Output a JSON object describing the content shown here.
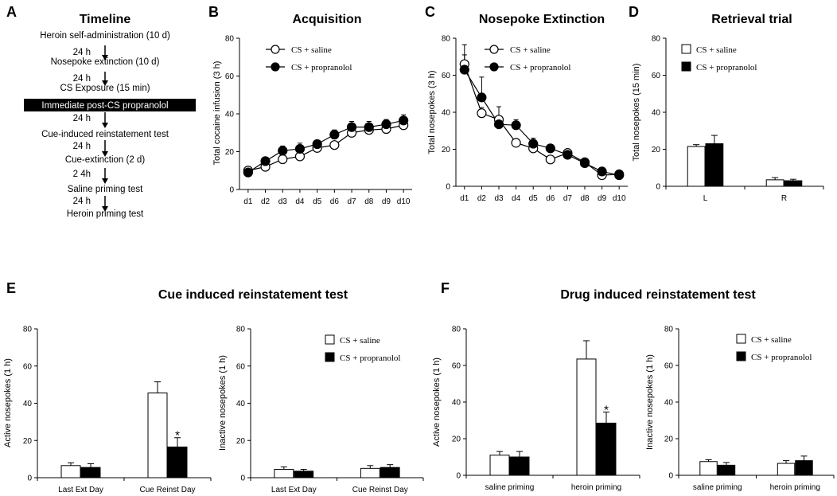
{
  "panel_letters": [
    "A",
    "B",
    "C",
    "D",
    "E",
    "F"
  ],
  "timeline": {
    "title": "Timeline",
    "steps": [
      "Heroin self-administration (10 d)",
      "Nosepoke extinction (10 d)",
      "CS Exposure (15 min)",
      "Immediate post-CS propranolol",
      "Cue-induced reinstatement test",
      "Cue-extinction (2 d)",
      "Saline priming test",
      "Heroin priming test"
    ],
    "intervals": [
      "24 h",
      "24 h",
      "24 h",
      "24 h",
      "2 4h",
      "24 h"
    ]
  },
  "legend": {
    "saline": "CS + saline",
    "propranolol": "CS + propranolol"
  },
  "group_titles": {
    "E": "Cue induced reinstatement test",
    "F": "Drug induced reinstatement test"
  },
  "colors": {
    "saline_fill": "#ffffff",
    "propranolol_fill": "#000000",
    "axis": "#000000",
    "timeline_bar": "#000000"
  },
  "chart_data": [
    {
      "id": "B",
      "type": "line",
      "title": "Acquisition",
      "xlabel": "",
      "ylabel": "Total cocaine infusion (3 h)",
      "categories": [
        "d1",
        "d2",
        "d3",
        "d4",
        "d5",
        "d6",
        "d7",
        "d8",
        "d9",
        "d10"
      ],
      "ylim": [
        0,
        80
      ],
      "yticks": [
        0,
        20,
        40,
        60,
        80
      ],
      "series": [
        {
          "name": "CS + saline",
          "values": [
            10,
            12,
            16,
            17.5,
            22,
            23.5,
            30,
            31.5,
            32,
            34
          ],
          "errors": [
            1,
            1,
            1.5,
            1.5,
            1.5,
            1.5,
            2,
            2,
            2,
            2
          ]
        },
        {
          "name": "CS + propranolol",
          "values": [
            9,
            15,
            20.5,
            21.5,
            24,
            29,
            33,
            33,
            34.5,
            36.5
          ],
          "errors": [
            1,
            1.5,
            2.5,
            3,
            2,
            2.5,
            3,
            3,
            2.5,
            3
          ]
        }
      ],
      "legend_position": "top-left"
    },
    {
      "id": "C",
      "type": "line",
      "title": "Nosepoke Extinction",
      "xlabel": "",
      "ylabel": "Total nosepokes (3 h)",
      "categories": [
        "d1",
        "d2",
        "d3",
        "d4",
        "d5",
        "d6",
        "d7",
        "d8",
        "d9",
        "d10"
      ],
      "ylim": [
        0,
        80
      ],
      "yticks": [
        0,
        20,
        40,
        60,
        80
      ],
      "series": [
        {
          "name": "CS + saline",
          "values": [
            66,
            39.5,
            36,
            23.5,
            20.5,
            14.5,
            18,
            13,
            6,
            6.5
          ],
          "errors": [
            5,
            3,
            7,
            2,
            2,
            2,
            2,
            2,
            1.5,
            1
          ]
        },
        {
          "name": "CS + propranolol",
          "values": [
            63,
            48,
            33.5,
            33,
            23,
            20.5,
            17,
            12.5,
            8,
            6
          ],
          "errors": [
            13.5,
            11,
            2,
            3,
            3,
            2,
            2,
            2,
            1.5,
            1
          ]
        }
      ],
      "legend_position": "top-right"
    },
    {
      "id": "D",
      "type": "bar",
      "title": "Retrieval trial",
      "xlabel": "",
      "ylabel": "Total nosepokes (15 min)",
      "categories": [
        "L",
        "R"
      ],
      "ylim": [
        0,
        80
      ],
      "yticks": [
        0,
        20,
        40,
        60,
        80
      ],
      "series": [
        {
          "name": "CS + saline",
          "values": [
            21.5,
            3.5
          ],
          "errors": [
            1,
            1.2
          ]
        },
        {
          "name": "CS + propranolol",
          "values": [
            23,
            3
          ],
          "errors": [
            4.5,
            0.8
          ]
        }
      ],
      "legend_position": "top-right"
    },
    {
      "id": "E-left",
      "type": "bar",
      "title": "",
      "xlabel": "",
      "ylabel": "Active nosepokes (1 h)",
      "categories": [
        "Last Ext Day",
        "Cue Reinst Day"
      ],
      "ylim": [
        0,
        80
      ],
      "yticks": [
        0,
        20,
        40,
        60,
        80
      ],
      "series": [
        {
          "name": "CS + saline",
          "values": [
            6.5,
            45.5
          ],
          "errors": [
            1.5,
            6
          ]
        },
        {
          "name": "CS + propranolol",
          "values": [
            5.5,
            16.5
          ],
          "errors": [
            2,
            5
          ]
        }
      ],
      "annotations": [
        {
          "text": "*",
          "category": "Cue Reinst Day",
          "series": "CS + propranolol"
        }
      ]
    },
    {
      "id": "E-right",
      "type": "bar",
      "title": "",
      "xlabel": "",
      "ylabel": "Inactive nosepokes  (1 h)",
      "categories": [
        "Last Ext Day",
        "Cue Reinst Day"
      ],
      "ylim": [
        0,
        80
      ],
      "yticks": [
        0,
        20,
        40,
        60,
        80
      ],
      "series": [
        {
          "name": "CS + saline",
          "values": [
            4.5,
            5
          ],
          "errors": [
            1.3,
            1.5
          ]
        },
        {
          "name": "CS + propranolol",
          "values": [
            3.5,
            5.5
          ],
          "errors": [
            1,
            1.5
          ]
        }
      ],
      "legend_position": "top-right"
    },
    {
      "id": "F-left",
      "type": "bar",
      "title": "",
      "xlabel": "",
      "ylabel": "Active nosepokes (1 h)",
      "categories": [
        "saline priming",
        "heroin priming"
      ],
      "ylim": [
        0,
        80
      ],
      "yticks": [
        0,
        20,
        40,
        60,
        80
      ],
      "series": [
        {
          "name": "CS + saline",
          "values": [
            11,
            63.5
          ],
          "errors": [
            2,
            10
          ]
        },
        {
          "name": "CS + propranolol",
          "values": [
            10,
            28.5
          ],
          "errors": [
            3,
            6
          ]
        }
      ],
      "annotations": [
        {
          "text": "*",
          "category": "heroin priming",
          "series": "CS + propranolol"
        }
      ]
    },
    {
      "id": "F-right",
      "type": "bar",
      "title": "",
      "xlabel": "",
      "ylabel": "Inactive nosepokes (1 h)",
      "categories": [
        "saline priming",
        "heroin priming"
      ],
      "ylim": [
        0,
        80
      ],
      "yticks": [
        0,
        20,
        40,
        60,
        80
      ],
      "series": [
        {
          "name": "CS + saline",
          "values": [
            7.5,
            6.5
          ],
          "errors": [
            1,
            1.5
          ]
        },
        {
          "name": "CS + propranolol",
          "values": [
            5.5,
            8
          ],
          "errors": [
            1.5,
            2.5
          ]
        }
      ],
      "legend_position": "top-right"
    }
  ]
}
